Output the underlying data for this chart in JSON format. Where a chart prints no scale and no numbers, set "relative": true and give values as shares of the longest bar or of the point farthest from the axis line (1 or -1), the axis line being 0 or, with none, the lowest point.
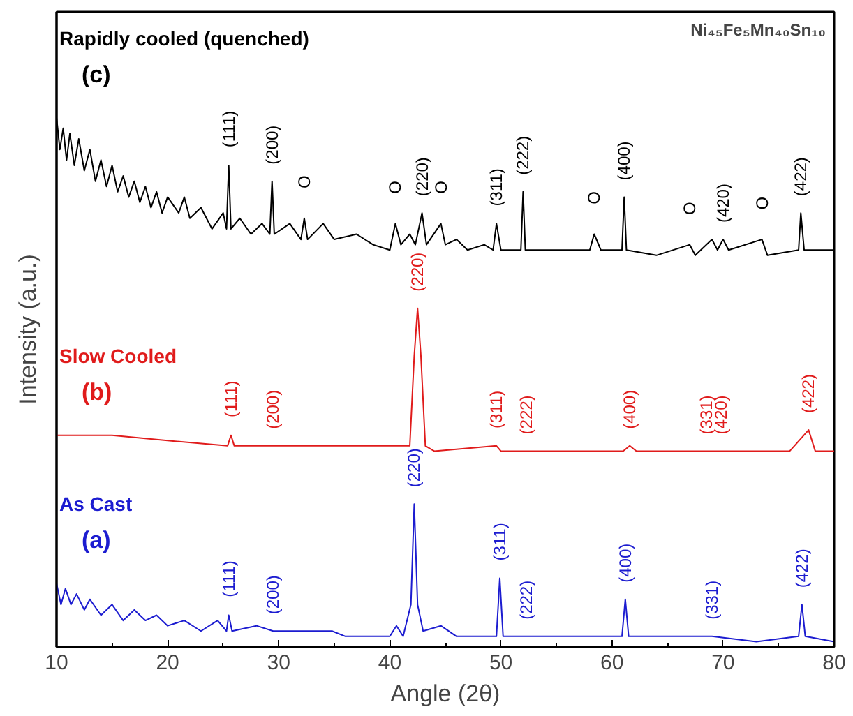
{
  "chart_data": {
    "type": "line",
    "relative": true,
    "xlabel": "Angle (2θ)",
    "ylabel": "Intensity (a.u.)",
    "xlim": [
      10,
      80
    ],
    "xticks": [
      10,
      20,
      30,
      40,
      50,
      60,
      70,
      80
    ],
    "grid": false,
    "marker": "none",
    "line_style": "solid",
    "series": [
      {
        "name": "Rapidly cooled (quenched)",
        "color": "#000000",
        "x": [
          10,
          10.3,
          10.6,
          10.9,
          11.2,
          11.6,
          12,
          12.5,
          13,
          13.5,
          14,
          14.5,
          15,
          15.5,
          16,
          16.5,
          17,
          17.5,
          18,
          18.5,
          19,
          19.5,
          20,
          21,
          21.5,
          22,
          23,
          24,
          25,
          25.3,
          25.5,
          25.7,
          26.5,
          27.5,
          28.5,
          29.2,
          29.4,
          29.6,
          31,
          32,
          32.3,
          32.6,
          34,
          35,
          37,
          38.5,
          40,
          40.5,
          41,
          41.8,
          42.3,
          42.9,
          43.3,
          44.6,
          45,
          46,
          47,
          48.5,
          49.3,
          49.6,
          50,
          51.8,
          52,
          52.2,
          55,
          58,
          58.4,
          59,
          60.9,
          61.1,
          61.3,
          64,
          67,
          67.5,
          69,
          69.5,
          70,
          70.5,
          73.5,
          74,
          76.8,
          77,
          77.3,
          80
        ],
        "values": [
          1.0,
          0.94,
          0.98,
          0.92,
          0.97,
          0.91,
          0.96,
          0.9,
          0.94,
          0.88,
          0.92,
          0.87,
          0.91,
          0.86,
          0.89,
          0.85,
          0.88,
          0.84,
          0.87,
          0.83,
          0.86,
          0.82,
          0.85,
          0.82,
          0.85,
          0.81,
          0.83,
          0.79,
          0.82,
          0.79,
          0.91,
          0.79,
          0.81,
          0.78,
          0.8,
          0.78,
          0.88,
          0.78,
          0.8,
          0.77,
          0.81,
          0.77,
          0.8,
          0.77,
          0.78,
          0.76,
          0.75,
          0.8,
          0.76,
          0.78,
          0.76,
          0.82,
          0.76,
          0.8,
          0.76,
          0.77,
          0.75,
          0.76,
          0.75,
          0.8,
          0.75,
          0.75,
          0.86,
          0.75,
          0.75,
          0.75,
          0.78,
          0.75,
          0.75,
          0.85,
          0.75,
          0.74,
          0.76,
          0.74,
          0.77,
          0.75,
          0.77,
          0.75,
          0.77,
          0.74,
          0.75,
          0.82,
          0.75,
          0.75
        ]
      },
      {
        "name": "Slow Cooled",
        "color": "#e01b1b",
        "x": [
          10,
          15,
          20,
          25.4,
          25.7,
          26,
          29.5,
          30,
          40.5,
          41.8,
          42.2,
          42.5,
          42.8,
          43.2,
          44,
          49.6,
          50,
          52.3,
          61,
          61.6,
          62.2,
          68.5,
          69.8,
          76,
          77.7,
          78.3,
          80
        ],
        "values": [
          0.4,
          0.4,
          0.39,
          0.38,
          0.4,
          0.38,
          0.38,
          0.38,
          0.38,
          0.38,
          0.55,
          0.64,
          0.55,
          0.38,
          0.37,
          0.38,
          0.37,
          0.37,
          0.37,
          0.38,
          0.37,
          0.37,
          0.37,
          0.37,
          0.41,
          0.37,
          0.37
        ]
      },
      {
        "name": "As Cast",
        "color": "#1c1cd0",
        "x": [
          10,
          10.4,
          10.8,
          11.3,
          11.8,
          12.5,
          13,
          14,
          15,
          16,
          17,
          18,
          19,
          20,
          21.5,
          23,
          24.5,
          25.3,
          25.5,
          25.8,
          28,
          29.5,
          31,
          34.8,
          36,
          40,
          40.6,
          41.2,
          41.9,
          42.2,
          42.5,
          43,
          44.6,
          46,
          49.6,
          49.9,
          50.2,
          52.3,
          55,
          58.7,
          60.9,
          61.2,
          61.5,
          67,
          69,
          73,
          76.8,
          77.1,
          77.4,
          80
        ],
        "values": [
          0.12,
          0.08,
          0.11,
          0.08,
          0.1,
          0.07,
          0.09,
          0.06,
          0.08,
          0.05,
          0.07,
          0.05,
          0.06,
          0.04,
          0.05,
          0.03,
          0.05,
          0.03,
          0.06,
          0.03,
          0.04,
          0.03,
          0.03,
          0.03,
          0.02,
          0.02,
          0.04,
          0.02,
          0.08,
          0.27,
          0.08,
          0.03,
          0.04,
          0.02,
          0.02,
          0.13,
          0.02,
          0.02,
          0.02,
          0.02,
          0.02,
          0.09,
          0.02,
          0.02,
          0.02,
          0.01,
          0.02,
          0.08,
          0.02,
          0.01
        ]
      }
    ],
    "annotations": [
      "Ni₄₅Fe₅Mn₄₀Sn₁₀",
      "(c)",
      "(b)",
      "(a)",
      {
        "text": "(111)",
        "x": 25.5,
        "y": 0.91
      },
      {
        "text": "(200)",
        "x": 29.4,
        "y": 0.88
      },
      {
        "text": "O",
        "x": 32.3,
        "y": 0.81
      },
      {
        "text": "O",
        "x": 40.5,
        "y": 0.8
      },
      {
        "text": "(220)",
        "x": 42.9,
        "y": 0.82
      },
      {
        "text": "O",
        "x": 44.6,
        "y": 0.8
      },
      {
        "text": "(311)",
        "x": 49.6,
        "y": 0.8
      },
      {
        "text": "(222)",
        "x": 52,
        "y": 0.86
      },
      {
        "text": "O",
        "x": 58.4,
        "y": 0.78
      },
      {
        "text": "(400)",
        "x": 61.1,
        "y": 0.85
      },
      {
        "text": "O",
        "x": 67,
        "y": 0.76
      },
      {
        "text": "(420)",
        "x": 70,
        "y": 0.77
      },
      {
        "text": "O",
        "x": 73.5,
        "y": 0.77
      },
      {
        "text": "(422)",
        "x": 77,
        "y": 0.82
      },
      {
        "text": "(111)",
        "x": 25.7,
        "y": 0.4
      },
      {
        "text": "(200)",
        "x": 29.5,
        "y": 0.38
      },
      {
        "text": "(220)",
        "x": 42.5,
        "y": 0.64
      },
      {
        "text": "(311)",
        "x": 49.6,
        "y": 0.38
      },
      {
        "text": "(222)",
        "x": 52.3,
        "y": 0.37
      },
      {
        "text": "(400)",
        "x": 61.6,
        "y": 0.38
      },
      {
        "text": "(331)",
        "x": 68.5,
        "y": 0.37
      },
      {
        "text": "(420)",
        "x": 69.8,
        "y": 0.37
      },
      {
        "text": "(422)",
        "x": 77.7,
        "y": 0.41
      },
      {
        "text": "(111)",
        "x": 25.5,
        "y": 0.06
      },
      {
        "text": "(200)",
        "x": 29.5,
        "y": 0.03
      },
      {
        "text": "(220)",
        "x": 42.2,
        "y": 0.27
      },
      {
        "text": "(311)",
        "x": 49.9,
        "y": 0.13
      },
      {
        "text": "(222)",
        "x": 52.3,
        "y": 0.02
      },
      {
        "text": "(400)",
        "x": 61.2,
        "y": 0.09
      },
      {
        "text": "(331)",
        "x": 69,
        "y": 0.02
      },
      {
        "text": "(422)",
        "x": 77.1,
        "y": 0.08
      }
    ]
  }
}
